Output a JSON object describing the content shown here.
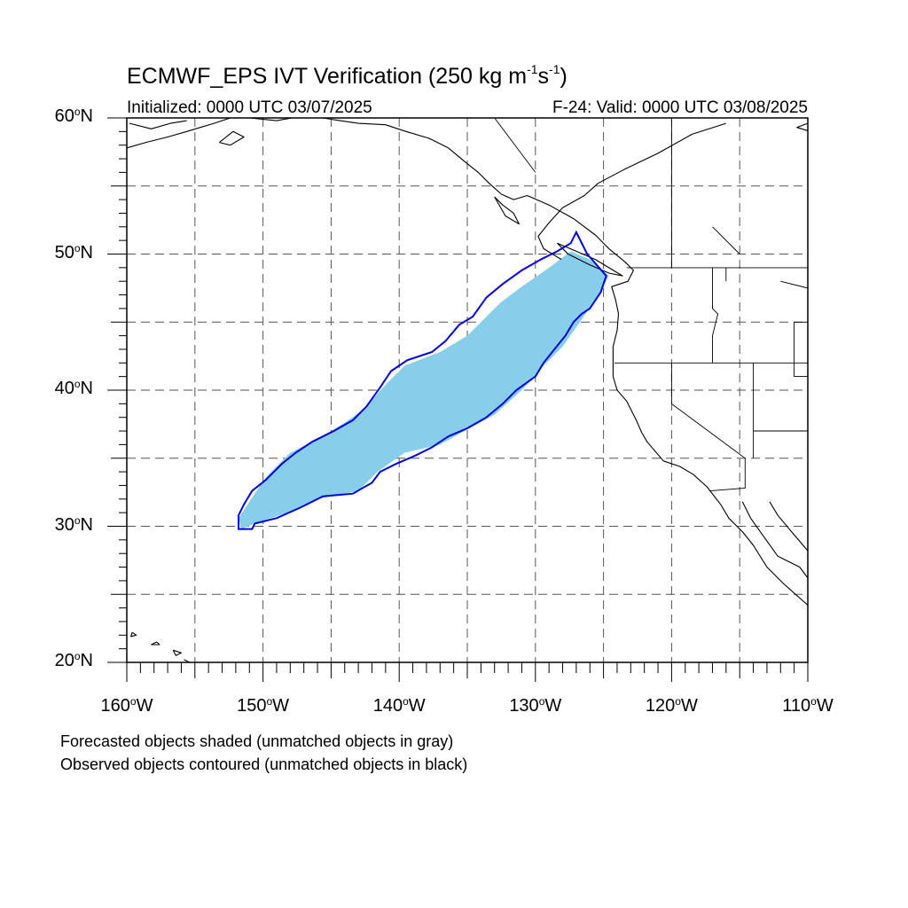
{
  "figure": {
    "title": "ECMWF_EPS IVT Verification (250 kg m",
    "title_exp1": "-1",
    "title_mid": "s",
    "title_exp2": "-1",
    "title_end": ")",
    "initialized": "Initialized: 0000 UTC 03/07/2025",
    "valid": "F-24: Valid: 0000 UTC 03/08/2025",
    "note_forecast": "Forecasted objects shaded (unmatched objects in gray)",
    "note_observed": "Observed objects contoured (unmatched objects in black)"
  },
  "axes": {
    "lat_labels": [
      "60",
      "50",
      "40",
      "30",
      "20"
    ],
    "lat_suffix": "N",
    "lon_labels": [
      "160",
      "150",
      "140",
      "130",
      "120",
      "110"
    ],
    "lon_suffix": "W",
    "lon_range": [
      -160,
      -110
    ],
    "lat_range": [
      20,
      60
    ],
    "grid_spacing_deg": 5,
    "grid_style": "dashed"
  },
  "colors": {
    "forecast_fill": "#87ceeb",
    "observed_contour": "#0000dd",
    "coastline": "#000000",
    "grid": "#555555"
  },
  "forecast_object": [
    [
      -151.6,
      29.8
    ],
    [
      -150.6,
      30.2
    ],
    [
      -148.2,
      31.0
    ],
    [
      -146.0,
      32.0
    ],
    [
      -143.0,
      32.6
    ],
    [
      -141.6,
      34.0
    ],
    [
      -139.6,
      35.4
    ],
    [
      -137.0,
      36.0
    ],
    [
      -135.2,
      37.0
    ],
    [
      -133.0,
      38.2
    ],
    [
      -131.0,
      40.0
    ],
    [
      -129.4,
      41.8
    ],
    [
      -128.0,
      43.2
    ],
    [
      -126.6,
      45.2
    ],
    [
      -125.4,
      47.0
    ],
    [
      -124.6,
      48.4
    ],
    [
      -126.0,
      49.6
    ],
    [
      -127.4,
      50.2
    ],
    [
      -129.0,
      49.0
    ],
    [
      -131.0,
      47.6
    ],
    [
      -132.6,
      46.4
    ],
    [
      -134.0,
      45.0
    ],
    [
      -135.0,
      44.0
    ],
    [
      -137.0,
      42.8
    ],
    [
      -139.6,
      41.8
    ],
    [
      -141.0,
      40.4
    ],
    [
      -142.6,
      38.6
    ],
    [
      -144.0,
      37.6
    ],
    [
      -146.0,
      36.4
    ],
    [
      -148.0,
      35.4
    ],
    [
      -149.8,
      33.6
    ],
    [
      -151.0,
      31.8
    ],
    [
      -151.8,
      30.6
    ]
  ],
  "observed_object": [
    [
      -151.8,
      29.8
    ],
    [
      -150.8,
      29.8
    ],
    [
      -150.6,
      30.2
    ],
    [
      -149.0,
      30.6
    ],
    [
      -147.2,
      31.4
    ],
    [
      -145.6,
      32.2
    ],
    [
      -143.4,
      32.4
    ],
    [
      -142.0,
      33.2
    ],
    [
      -141.4,
      34.0
    ],
    [
      -140.2,
      34.6
    ],
    [
      -138.8,
      35.2
    ],
    [
      -137.6,
      35.8
    ],
    [
      -136.4,
      36.6
    ],
    [
      -135.0,
      37.2
    ],
    [
      -133.6,
      38.0
    ],
    [
      -132.4,
      39.0
    ],
    [
      -131.4,
      40.0
    ],
    [
      -130.0,
      41.0
    ],
    [
      -129.4,
      42.0
    ],
    [
      -128.6,
      43.0
    ],
    [
      -127.8,
      44.0
    ],
    [
      -127.2,
      45.0
    ],
    [
      -126.6,
      45.6
    ],
    [
      -126.0,
      46.0
    ],
    [
      -125.2,
      47.2
    ],
    [
      -124.8,
      48.4
    ],
    [
      -126.2,
      50.0
    ],
    [
      -127.0,
      51.6
    ],
    [
      -127.4,
      50.8
    ],
    [
      -128.4,
      50.2
    ],
    [
      -129.6,
      49.6
    ],
    [
      -131.0,
      48.8
    ],
    [
      -132.4,
      47.8
    ],
    [
      -133.6,
      46.8
    ],
    [
      -134.6,
      45.4
    ],
    [
      -135.6,
      44.8
    ],
    [
      -136.6,
      43.6
    ],
    [
      -137.6,
      42.8
    ],
    [
      -139.4,
      42.2
    ],
    [
      -140.6,
      41.4
    ],
    [
      -141.4,
      40.2
    ],
    [
      -142.4,
      38.8
    ],
    [
      -143.4,
      37.8
    ],
    [
      -144.8,
      37.0
    ],
    [
      -146.4,
      36.2
    ],
    [
      -147.6,
      35.4
    ],
    [
      -148.6,
      34.6
    ],
    [
      -149.8,
      33.4
    ],
    [
      -150.8,
      32.6
    ],
    [
      -151.4,
      31.6
    ],
    [
      -151.8,
      30.8
    ]
  ],
  "coastlines": [
    [
      [
        -110.0,
        59.6
      ],
      [
        -110.8,
        59.3
      ],
      [
        -109.8,
        59.0
      ]
    ],
    [
      [
        -116.0,
        59.6
      ],
      [
        -118.5,
        58.8
      ],
      [
        -121.0,
        57.4
      ],
      [
        -123.5,
        56.2
      ],
      [
        -125.4,
        55.2
      ],
      [
        -126.4,
        54.3
      ],
      [
        -128.0,
        53.4
      ],
      [
        -129.0,
        52.3
      ],
      [
        -129.8,
        51.3
      ],
      [
        -129.4,
        50.4
      ],
      [
        -128.1,
        49.6
      ]
    ],
    [
      [
        -151.0,
        60.0
      ],
      [
        -149.0,
        59.8
      ],
      [
        -146.8,
        60.2
      ],
      [
        -145.0,
        59.9
      ],
      [
        -143.0,
        59.6
      ],
      [
        -141.0,
        59.5
      ],
      [
        -139.5,
        59.0
      ],
      [
        -137.8,
        58.5
      ],
      [
        -136.4,
        57.8
      ],
      [
        -135.2,
        56.8
      ],
      [
        -134.2,
        56.0
      ],
      [
        -133.4,
        55.2
      ],
      [
        -132.5,
        54.4
      ],
      [
        -131.6,
        54.0
      ],
      [
        -130.6,
        54.3
      ],
      [
        -129.0,
        53.6
      ],
      [
        -127.2,
        52.6
      ],
      [
        -125.6,
        51.4
      ],
      [
        -124.6,
        50.4
      ],
      [
        -123.4,
        49.4
      ],
      [
        -122.8,
        48.8
      ],
      [
        -123.2,
        48.0
      ],
      [
        -124.4,
        47.6
      ],
      [
        -124.1,
        46.6
      ],
      [
        -123.9,
        45.6
      ],
      [
        -124.0,
        44.4
      ],
      [
        -124.3,
        43.2
      ],
      [
        -124.3,
        42.0
      ],
      [
        -124.3,
        41.0
      ],
      [
        -124.0,
        40.0
      ],
      [
        -123.3,
        39.2
      ],
      [
        -122.6,
        37.8
      ],
      [
        -122.2,
        36.9
      ],
      [
        -121.8,
        36.2
      ],
      [
        -120.6,
        34.8
      ],
      [
        -119.4,
        34.4
      ],
      [
        -118.4,
        33.8
      ],
      [
        -117.4,
        32.9
      ],
      [
        -116.4,
        31.6
      ],
      [
        -115.8,
        30.6
      ],
      [
        -114.8,
        29.6
      ],
      [
        -114.0,
        28.6
      ],
      [
        -113.0,
        27.0
      ],
      [
        -111.8,
        25.8
      ],
      [
        -110.0,
        24.2
      ]
    ],
    [
      [
        -114.8,
        31.8
      ],
      [
        -114.2,
        30.6
      ],
      [
        -113.2,
        29.2
      ],
      [
        -112.2,
        27.8
      ],
      [
        -110.6,
        27.0
      ],
      [
        -110.0,
        26.2
      ]
    ],
    [
      [
        -112.8,
        31.8
      ],
      [
        -112.2,
        30.8
      ],
      [
        -111.2,
        29.6
      ],
      [
        -110.0,
        28.2
      ]
    ],
    [
      [
        -160.0,
        57.8
      ],
      [
        -158.6,
        58.2
      ],
      [
        -157.0,
        58.6
      ],
      [
        -155.6,
        59.0
      ],
      [
        -154.6,
        59.3
      ],
      [
        -153.6,
        59.6
      ],
      [
        -152.4,
        60.0
      ]
    ],
    [
      [
        -159.8,
        59.6
      ],
      [
        -158.2,
        59.2
      ],
      [
        -156.8,
        59.6
      ],
      [
        -155.6,
        59.8
      ]
    ],
    [
      [
        -153.2,
        58.2
      ],
      [
        -152.4,
        58.0
      ],
      [
        -151.4,
        58.6
      ],
      [
        -152.2,
        59.0
      ],
      [
        -153.2,
        58.2
      ]
    ],
    [
      [
        -133.0,
        54.2
      ],
      [
        -132.4,
        53.6
      ],
      [
        -131.6,
        53.0
      ],
      [
        -131.2,
        52.2
      ],
      [
        -132.2,
        52.8
      ],
      [
        -133.0,
        54.2
      ]
    ],
    [
      [
        -128.4,
        50.8
      ],
      [
        -127.0,
        50.2
      ],
      [
        -125.6,
        49.6
      ],
      [
        -124.6,
        49.0
      ],
      [
        -123.6,
        48.4
      ],
      [
        -124.6,
        48.6
      ],
      [
        -126.0,
        49.2
      ],
      [
        -127.6,
        50.0
      ],
      [
        -128.4,
        50.8
      ]
    ],
    [
      [
        -155.8,
        20.2
      ],
      [
        -155.0,
        19.8
      ],
      [
        -154.8,
        19.6
      ]
    ],
    [
      [
        -156.6,
        20.9
      ],
      [
        -156.0,
        20.7
      ],
      [
        -156.4,
        20.5
      ],
      [
        -156.6,
        20.9
      ]
    ],
    [
      [
        -157.8,
        21.5
      ],
      [
        -157.6,
        21.3
      ],
      [
        -158.2,
        21.3
      ],
      [
        -157.8,
        21.5
      ]
    ],
    [
      [
        -159.6,
        22.2
      ],
      [
        -159.3,
        22.0
      ],
      [
        -159.7,
        21.9
      ],
      [
        -159.6,
        22.2
      ]
    ]
  ],
  "boundaries": [
    [
      [
        -123.3,
        49.0
      ],
      [
        -110.0,
        49.0
      ]
    ],
    [
      [
        -124.2,
        42.0
      ],
      [
        -110.0,
        42.0
      ]
    ],
    [
      [
        -117.0,
        49.0
      ],
      [
        -117.0,
        46.0
      ],
      [
        -116.6,
        45.6
      ],
      [
        -117.0,
        44.0
      ],
      [
        -117.0,
        42.0
      ]
    ],
    [
      [
        -120.0,
        42.0
      ],
      [
        -120.0,
        39.0
      ],
      [
        -114.6,
        35.0
      ],
      [
        -114.6,
        34.2
      ],
      [
        -114.6,
        32.8
      ],
      [
        -117.2,
        32.6
      ]
    ],
    [
      [
        -114.0,
        42.0
      ],
      [
        -114.0,
        35.0
      ]
    ],
    [
      [
        -111.0,
        45.0
      ],
      [
        -110.0,
        45.0
      ]
    ],
    [
      [
        -111.0,
        45.0
      ],
      [
        -111.0,
        41.0
      ],
      [
        -110.0,
        41.0
      ]
    ],
    [
      [
        -114.0,
        37.0
      ],
      [
        -110.0,
        37.0
      ]
    ],
    [
      [
        -116.0,
        49.0
      ],
      [
        -116.0,
        48.0
      ]
    ],
    [
      [
        -133.0,
        60.0
      ],
      [
        -130.0,
        56.0
      ]
    ],
    [
      [
        -120.0,
        60.0
      ],
      [
        -120.0,
        49.0
      ]
    ],
    [
      [
        -117.0,
        52.0
      ],
      [
        -115.0,
        50.0
      ]
    ],
    [
      [
        -112.0,
        48.0
      ],
      [
        -110.0,
        47.5
      ]
    ]
  ]
}
